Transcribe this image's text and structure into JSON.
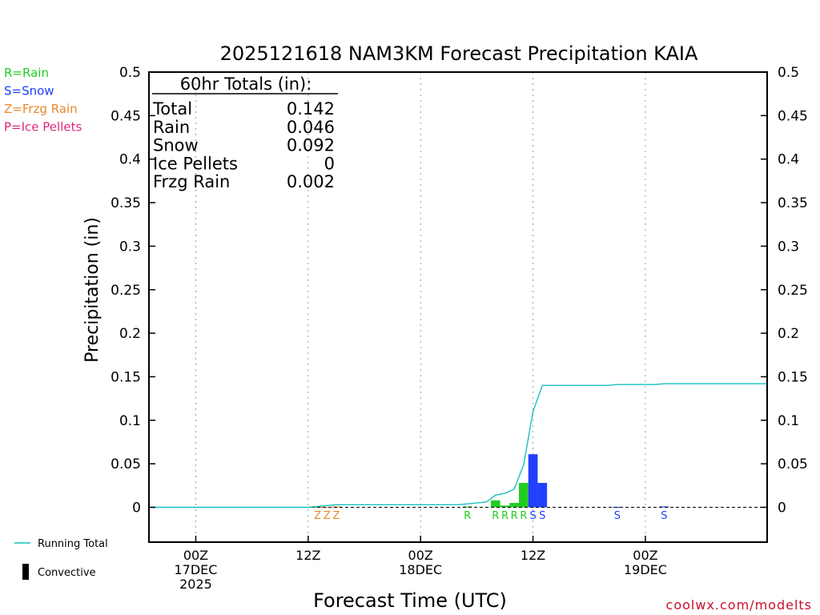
{
  "chart_data": {
    "type": "bar",
    "title": "2025121618 NAM3KM Forecast Precipitation KAIA",
    "xlabel": "Forecast Time (UTC)",
    "ylabel": "Precipitation (in)",
    "ylim": [
      -0.04,
      0.5
    ],
    "xlim": [
      -5,
      61
    ],
    "y_ticks": [
      {
        "v": 0.5,
        "label": "0.5"
      },
      {
        "v": 0.45,
        "label": "0.45"
      },
      {
        "v": 0.4,
        "label": "0.4"
      },
      {
        "v": 0.35,
        "label": "0.35"
      },
      {
        "v": 0.3,
        "label": "0.3"
      },
      {
        "v": 0.25,
        "label": "0.25"
      },
      {
        "v": 0.2,
        "label": "0.2"
      },
      {
        "v": 0.15,
        "label": "0.15"
      },
      {
        "v": 0.1,
        "label": "0.1"
      },
      {
        "v": 0.05,
        "label": "0.05"
      },
      {
        "v": 0,
        "label": "0"
      }
    ],
    "x_ticks": [
      {
        "h": 0,
        "lines": [
          "00Z",
          "17DEC",
          "2025"
        ]
      },
      {
        "h": 12,
        "lines": [
          "12Z"
        ]
      },
      {
        "h": 24,
        "lines": [
          "00Z",
          "18DEC"
        ]
      },
      {
        "h": 36,
        "lines": [
          "12Z"
        ]
      },
      {
        "h": 48,
        "lines": [
          "00Z",
          "19DEC"
        ]
      }
    ],
    "legend_ptype": [
      {
        "label": "R=Rain",
        "color": "#22cc22"
      },
      {
        "label": "S=Snow",
        "color": "#2040ff"
      },
      {
        "label": "Z=Frzg Rain",
        "color": "#e8882a"
      },
      {
        "label": "P=Ice Pellets",
        "color": "#e0287a"
      }
    ],
    "legend_series": [
      {
        "label": "Running Total",
        "color": "#17c0c0",
        "kind": "line"
      },
      {
        "label": "Convective",
        "color": "#000000",
        "kind": "bar"
      }
    ],
    "totals_box": {
      "title": "60hr Totals (in):",
      "rows": [
        {
          "name": "Total",
          "value": "0.142"
        },
        {
          "name": "Rain",
          "value": "0.046"
        },
        {
          "name": "Snow",
          "value": "0.092"
        },
        {
          "name": "Ice Pellets",
          "value": "0"
        },
        {
          "name": "Frzg Rain",
          "value": "0.002"
        }
      ]
    },
    "bars": [
      {
        "h": 13,
        "value": 0.0005,
        "ptype": "Z"
      },
      {
        "h": 14,
        "value": 0.0005,
        "ptype": "Z"
      },
      {
        "h": 15,
        "value": 0.001,
        "ptype": "Z"
      },
      {
        "h": 29,
        "value": 0.001,
        "ptype": "R"
      },
      {
        "h": 32,
        "value": 0.008,
        "ptype": "R"
      },
      {
        "h": 33,
        "value": 0.002,
        "ptype": "R"
      },
      {
        "h": 34,
        "value": 0.005,
        "ptype": "R"
      },
      {
        "h": 35,
        "value": 0.028,
        "ptype": "R"
      },
      {
        "h": 36,
        "value": 0.061,
        "ptype": "S"
      },
      {
        "h": 37,
        "value": 0.028,
        "ptype": "S"
      },
      {
        "h": 45,
        "value": 0.0005,
        "ptype": "S"
      },
      {
        "h": 50,
        "value": 0.001,
        "ptype": "S"
      }
    ],
    "ptype_marks": [
      {
        "h": 13,
        "letter": "Z"
      },
      {
        "h": 14,
        "letter": "Z"
      },
      {
        "h": 15,
        "letter": "Z"
      },
      {
        "h": 29,
        "letter": "R"
      },
      {
        "h": 32,
        "letter": "R"
      },
      {
        "h": 33,
        "letter": "R"
      },
      {
        "h": 34,
        "letter": "R"
      },
      {
        "h": 35,
        "letter": "R"
      },
      {
        "h": 36,
        "letter": "S"
      },
      {
        "h": 37,
        "letter": "S"
      },
      {
        "h": 45,
        "letter": "S"
      },
      {
        "h": 50,
        "letter": "S"
      }
    ],
    "running_total": [
      [
        -5,
        0
      ],
      [
        0,
        0
      ],
      [
        5,
        0
      ],
      [
        10,
        0
      ],
      [
        12,
        0
      ],
      [
        13,
        0.001
      ],
      [
        14,
        0.002
      ],
      [
        15,
        0.003
      ],
      [
        20,
        0.003
      ],
      [
        24,
        0.003
      ],
      [
        28,
        0.003
      ],
      [
        29,
        0.004
      ],
      [
        30,
        0.005
      ],
      [
        31,
        0.006
      ],
      [
        32,
        0.014
      ],
      [
        33,
        0.016
      ],
      [
        34,
        0.021
      ],
      [
        35,
        0.049
      ],
      [
        36,
        0.11
      ],
      [
        37,
        0.14
      ],
      [
        40,
        0.14
      ],
      [
        44,
        0.14
      ],
      [
        45,
        0.141
      ],
      [
        48,
        0.141
      ],
      [
        49,
        0.141
      ],
      [
        50,
        0.142
      ],
      [
        61,
        0.142
      ]
    ]
  },
  "credit": "coolwx.com/modelts"
}
